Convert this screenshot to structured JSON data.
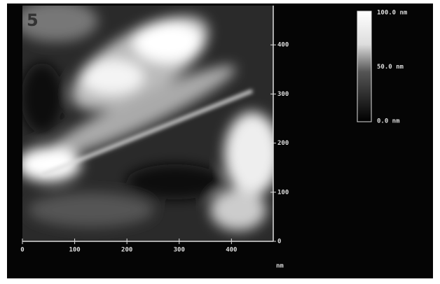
{
  "panel_label": "5",
  "x_axis": {
    "ticks": [
      0,
      100,
      200,
      300,
      400
    ],
    "lim": [
      0,
      480
    ],
    "unit": "nm"
  },
  "y_axis": {
    "ticks": [
      0,
      100,
      200,
      300,
      400
    ],
    "lim": [
      0,
      480
    ]
  },
  "colorbar": {
    "labels": [
      "100.0 nm",
      "50.0 nm",
      "0.0 nm"
    ]
  }
}
